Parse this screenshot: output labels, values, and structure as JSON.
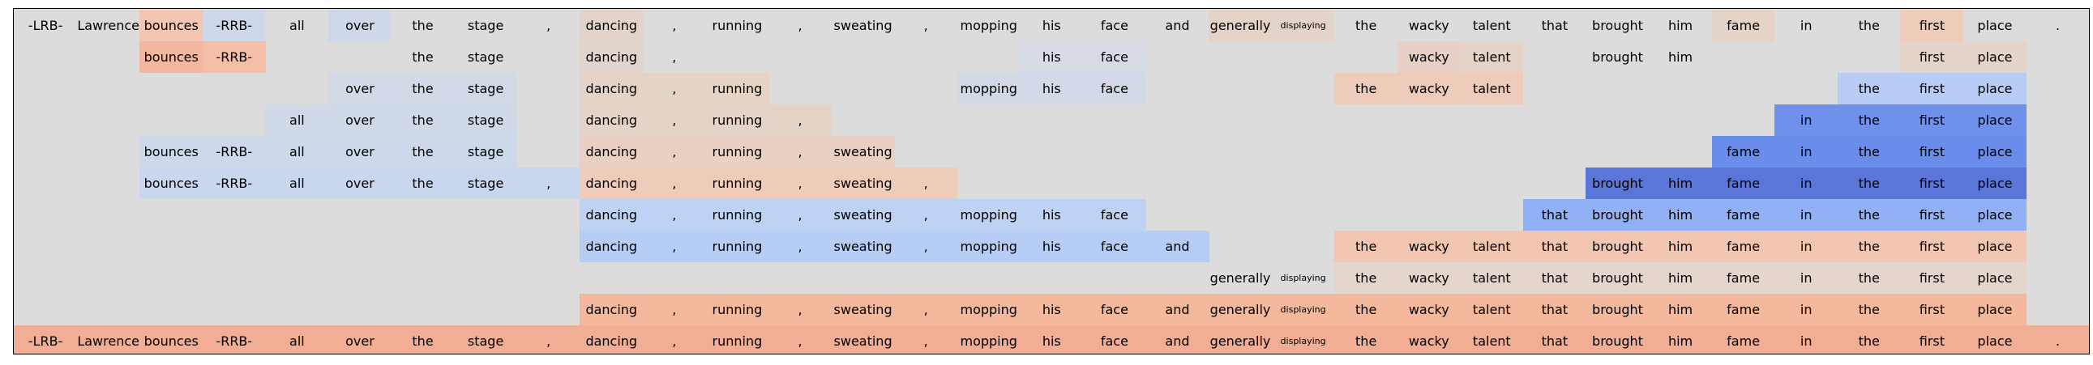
{
  "sentence": [
    "-LRB-",
    "Lawrence",
    "bounces",
    "-RRB-",
    "all",
    "over",
    "the",
    "stage",
    ",",
    "dancing",
    ",",
    "running",
    ",",
    "sweating",
    ",",
    "mopping",
    "his",
    "face",
    "and",
    "generally",
    "displaying",
    "the",
    "wacky",
    "talent",
    "that",
    "brought",
    "him",
    "fame",
    "in",
    "the",
    "first",
    "place",
    "."
  ],
  "small_tokens": [
    20
  ],
  "palette": {
    "frame_bg": "#dcdcdc",
    "border": "#000000"
  },
  "rows": [
    {
      "cells": [
        [
          0,
          "#dcdcdc"
        ],
        [
          1,
          "#dcdcdc"
        ],
        [
          2,
          "#f4c5b0"
        ],
        [
          3,
          "#cfd8ea"
        ],
        [
          4,
          "#dcdcdc"
        ],
        [
          5,
          "#cfd8ea"
        ],
        [
          6,
          "#dcdcdc"
        ],
        [
          7,
          "#dcdcdc"
        ],
        [
          8,
          "#dcdcdc"
        ],
        [
          9,
          "#e3d3cb"
        ],
        [
          10,
          "#dcdcdc"
        ],
        [
          11,
          "#dcdcdc"
        ],
        [
          12,
          "#dcdcdc"
        ],
        [
          13,
          "#dcdcdc"
        ],
        [
          14,
          "#dcdcdc"
        ],
        [
          15,
          "#dcdcdc"
        ],
        [
          16,
          "#dcdcdc"
        ],
        [
          17,
          "#dcdcdc"
        ],
        [
          18,
          "#dcdcdc"
        ],
        [
          19,
          "#e6d3c8"
        ],
        [
          20,
          "#e3d3cb"
        ],
        [
          21,
          "#dcdcdc"
        ],
        [
          22,
          "#dcdcdc"
        ],
        [
          23,
          "#dcdcdc"
        ],
        [
          24,
          "#dcdcdc"
        ],
        [
          25,
          "#dcdcdc"
        ],
        [
          26,
          "#dcdcdc"
        ],
        [
          27,
          "#e6d3c8"
        ],
        [
          28,
          "#dcdcdc"
        ],
        [
          29,
          "#dcdcdc"
        ],
        [
          30,
          "#efcbb9"
        ],
        [
          31,
          "#dcdcdc"
        ],
        [
          32,
          "#dcdcdc"
        ]
      ]
    },
    {
      "cells": [
        [
          2,
          "#f2b79e"
        ],
        [
          3,
          "#f4bfa6"
        ],
        [
          6,
          "#dcdcdc"
        ],
        [
          7,
          "#dcdcdc"
        ],
        [
          9,
          "#e2d5ce"
        ],
        [
          10,
          "#dcdcdc"
        ],
        [
          16,
          "#d6dbe4"
        ],
        [
          17,
          "#d6dbe4"
        ],
        [
          22,
          "#e8d0c4"
        ],
        [
          23,
          "#e6d3c8"
        ],
        [
          25,
          "#dcdcdc"
        ],
        [
          26,
          "#dcdcdc"
        ],
        [
          30,
          "#e5d4ca"
        ],
        [
          31,
          "#e5d4ca"
        ]
      ]
    },
    {
      "cells": [
        [
          5,
          "#d3d9e6"
        ],
        [
          6,
          "#d3d9e6"
        ],
        [
          7,
          "#d3d9e6"
        ],
        [
          9,
          "#e6d3c8"
        ],
        [
          10,
          "#e6d3c8"
        ],
        [
          11,
          "#e6d3c8"
        ],
        [
          15,
          "#d3d9e6"
        ],
        [
          16,
          "#d3d9e6"
        ],
        [
          17,
          "#d3d9e6"
        ],
        [
          21,
          "#efcbb9"
        ],
        [
          22,
          "#efcbb9"
        ],
        [
          23,
          "#efcbb9"
        ],
        [
          29,
          "#b8cdf5"
        ],
        [
          30,
          "#b8cdf5"
        ],
        [
          31,
          "#b8cdf5"
        ]
      ]
    },
    {
      "cells": [
        [
          4,
          "#d0d9e8"
        ],
        [
          5,
          "#d0d9e8"
        ],
        [
          6,
          "#d0d9e8"
        ],
        [
          7,
          "#d0d9e8"
        ],
        [
          9,
          "#e6d3c8"
        ],
        [
          10,
          "#e6d3c8"
        ],
        [
          11,
          "#e6d3c8"
        ],
        [
          12,
          "#e6d3c8"
        ],
        [
          28,
          "#6f90eb"
        ],
        [
          29,
          "#6f90eb"
        ],
        [
          30,
          "#6f90eb"
        ],
        [
          31,
          "#6f90eb"
        ]
      ]
    },
    {
      "cells": [
        [
          2,
          "#cdd8ea"
        ],
        [
          3,
          "#cdd8ea"
        ],
        [
          4,
          "#cdd8ea"
        ],
        [
          5,
          "#cdd8ea"
        ],
        [
          6,
          "#cdd8ea"
        ],
        [
          7,
          "#cdd8ea"
        ],
        [
          9,
          "#ead0c2"
        ],
        [
          10,
          "#ead0c2"
        ],
        [
          11,
          "#ead0c2"
        ],
        [
          12,
          "#ead0c2"
        ],
        [
          13,
          "#ead0c2"
        ],
        [
          27,
          "#6a8cea"
        ],
        [
          28,
          "#6a8cea"
        ],
        [
          29,
          "#6a8cea"
        ],
        [
          30,
          "#6a8cea"
        ],
        [
          31,
          "#6a8cea"
        ]
      ]
    },
    {
      "cells": [
        [
          2,
          "#c8d6ee"
        ],
        [
          3,
          "#c8d6ee"
        ],
        [
          4,
          "#c8d6ee"
        ],
        [
          5,
          "#c8d6ee"
        ],
        [
          6,
          "#c8d6ee"
        ],
        [
          7,
          "#c8d6ee"
        ],
        [
          8,
          "#c8d6ee"
        ],
        [
          9,
          "#efcbb9"
        ],
        [
          10,
          "#efcbb9"
        ],
        [
          11,
          "#efcbb9"
        ],
        [
          12,
          "#efcbb9"
        ],
        [
          13,
          "#efcbb9"
        ],
        [
          14,
          "#efcbb9"
        ],
        [
          25,
          "#5a76d8"
        ],
        [
          26,
          "#5a76d8"
        ],
        [
          27,
          "#5a76d8"
        ],
        [
          28,
          "#5a76d8"
        ],
        [
          29,
          "#5a76d8"
        ],
        [
          30,
          "#5a76d8"
        ],
        [
          31,
          "#5a76d8"
        ]
      ]
    },
    {
      "cells": [
        [
          9,
          "#bed2f3"
        ],
        [
          10,
          "#bed2f3"
        ],
        [
          11,
          "#bed2f3"
        ],
        [
          12,
          "#bed2f3"
        ],
        [
          13,
          "#bed2f3"
        ],
        [
          14,
          "#bed2f3"
        ],
        [
          15,
          "#bed2f3"
        ],
        [
          16,
          "#bed2f3"
        ],
        [
          17,
          "#bed2f3"
        ],
        [
          24,
          "#92b0f5"
        ],
        [
          25,
          "#92b0f5"
        ],
        [
          26,
          "#92b0f5"
        ],
        [
          27,
          "#92b0f5"
        ],
        [
          28,
          "#92b0f5"
        ],
        [
          29,
          "#92b0f5"
        ],
        [
          30,
          "#92b0f5"
        ],
        [
          31,
          "#92b0f5"
        ]
      ]
    },
    {
      "cells": [
        [
          9,
          "#b6cdf6"
        ],
        [
          10,
          "#b6cdf6"
        ],
        [
          11,
          "#b6cdf6"
        ],
        [
          12,
          "#b6cdf6"
        ],
        [
          13,
          "#b6cdf6"
        ],
        [
          14,
          "#b6cdf6"
        ],
        [
          15,
          "#b6cdf6"
        ],
        [
          16,
          "#b6cdf6"
        ],
        [
          17,
          "#b6cdf6"
        ],
        [
          18,
          "#b6cdf6"
        ],
        [
          21,
          "#f2c6b1"
        ],
        [
          22,
          "#f2c6b1"
        ],
        [
          23,
          "#f2c6b1"
        ],
        [
          24,
          "#f2c6b1"
        ],
        [
          25,
          "#f2c6b1"
        ],
        [
          26,
          "#f2c6b1"
        ],
        [
          27,
          "#f2c6b1"
        ],
        [
          28,
          "#f2c6b1"
        ],
        [
          29,
          "#f2c6b1"
        ],
        [
          30,
          "#f2c6b1"
        ],
        [
          31,
          "#f2c6b1"
        ]
      ]
    },
    {
      "cells": [
        [
          19,
          "#dcdcdc"
        ],
        [
          20,
          "#dcdcdc"
        ],
        [
          21,
          "#e5d6cd"
        ],
        [
          22,
          "#e5d6cd"
        ],
        [
          23,
          "#e5d6cd"
        ],
        [
          24,
          "#e5d6cd"
        ],
        [
          25,
          "#e5d6cd"
        ],
        [
          26,
          "#e5d6cd"
        ],
        [
          27,
          "#e5d6cd"
        ],
        [
          28,
          "#e5d6cd"
        ],
        [
          29,
          "#e5d6cd"
        ],
        [
          30,
          "#e5d6cd"
        ],
        [
          31,
          "#e5d6cd"
        ]
      ]
    },
    {
      "cells": [
        [
          9,
          "#f4b89d"
        ],
        [
          10,
          "#f4b89d"
        ],
        [
          11,
          "#f4b89d"
        ],
        [
          12,
          "#f4b89d"
        ],
        [
          13,
          "#f4b89d"
        ],
        [
          14,
          "#f4b89d"
        ],
        [
          15,
          "#f4b89d"
        ],
        [
          16,
          "#f4b89d"
        ],
        [
          17,
          "#f4b89d"
        ],
        [
          18,
          "#f4b89d"
        ],
        [
          19,
          "#f4b89d"
        ],
        [
          20,
          "#f4b89d"
        ],
        [
          21,
          "#f4b89d"
        ],
        [
          22,
          "#f4b89d"
        ],
        [
          23,
          "#f4b89d"
        ],
        [
          24,
          "#f4b89d"
        ],
        [
          25,
          "#f4b89d"
        ],
        [
          26,
          "#f4b89d"
        ],
        [
          27,
          "#f4b89d"
        ],
        [
          28,
          "#f4b89d"
        ],
        [
          29,
          "#f4b89d"
        ],
        [
          30,
          "#f4b89d"
        ],
        [
          31,
          "#f4b89d"
        ]
      ]
    },
    {
      "cells": [
        [
          0,
          "#f2ae94"
        ],
        [
          1,
          "#f2ae94"
        ],
        [
          2,
          "#f2ae94"
        ],
        [
          3,
          "#f2ae94"
        ],
        [
          4,
          "#f2ae94"
        ],
        [
          5,
          "#f2ae94"
        ],
        [
          6,
          "#f2ae94"
        ],
        [
          7,
          "#f2ae94"
        ],
        [
          8,
          "#f2ae94"
        ],
        [
          9,
          "#f2ae94"
        ],
        [
          10,
          "#f2ae94"
        ],
        [
          11,
          "#f2ae94"
        ],
        [
          12,
          "#f2ae94"
        ],
        [
          13,
          "#f2ae94"
        ],
        [
          14,
          "#f2ae94"
        ],
        [
          15,
          "#f2ae94"
        ],
        [
          16,
          "#f2ae94"
        ],
        [
          17,
          "#f2ae94"
        ],
        [
          18,
          "#f2ae94"
        ],
        [
          19,
          "#f2ae94"
        ],
        [
          20,
          "#f2ae94"
        ],
        [
          21,
          "#f2ae94"
        ],
        [
          22,
          "#f2ae94"
        ],
        [
          23,
          "#f2ae94"
        ],
        [
          24,
          "#f2ae94"
        ],
        [
          25,
          "#f2ae94"
        ],
        [
          26,
          "#f2ae94"
        ],
        [
          27,
          "#f2ae94"
        ],
        [
          28,
          "#f2ae94"
        ],
        [
          29,
          "#f2ae94"
        ],
        [
          30,
          "#f2ae94"
        ],
        [
          31,
          "#f2ae94"
        ],
        [
          32,
          "#f2ae94"
        ]
      ]
    }
  ]
}
